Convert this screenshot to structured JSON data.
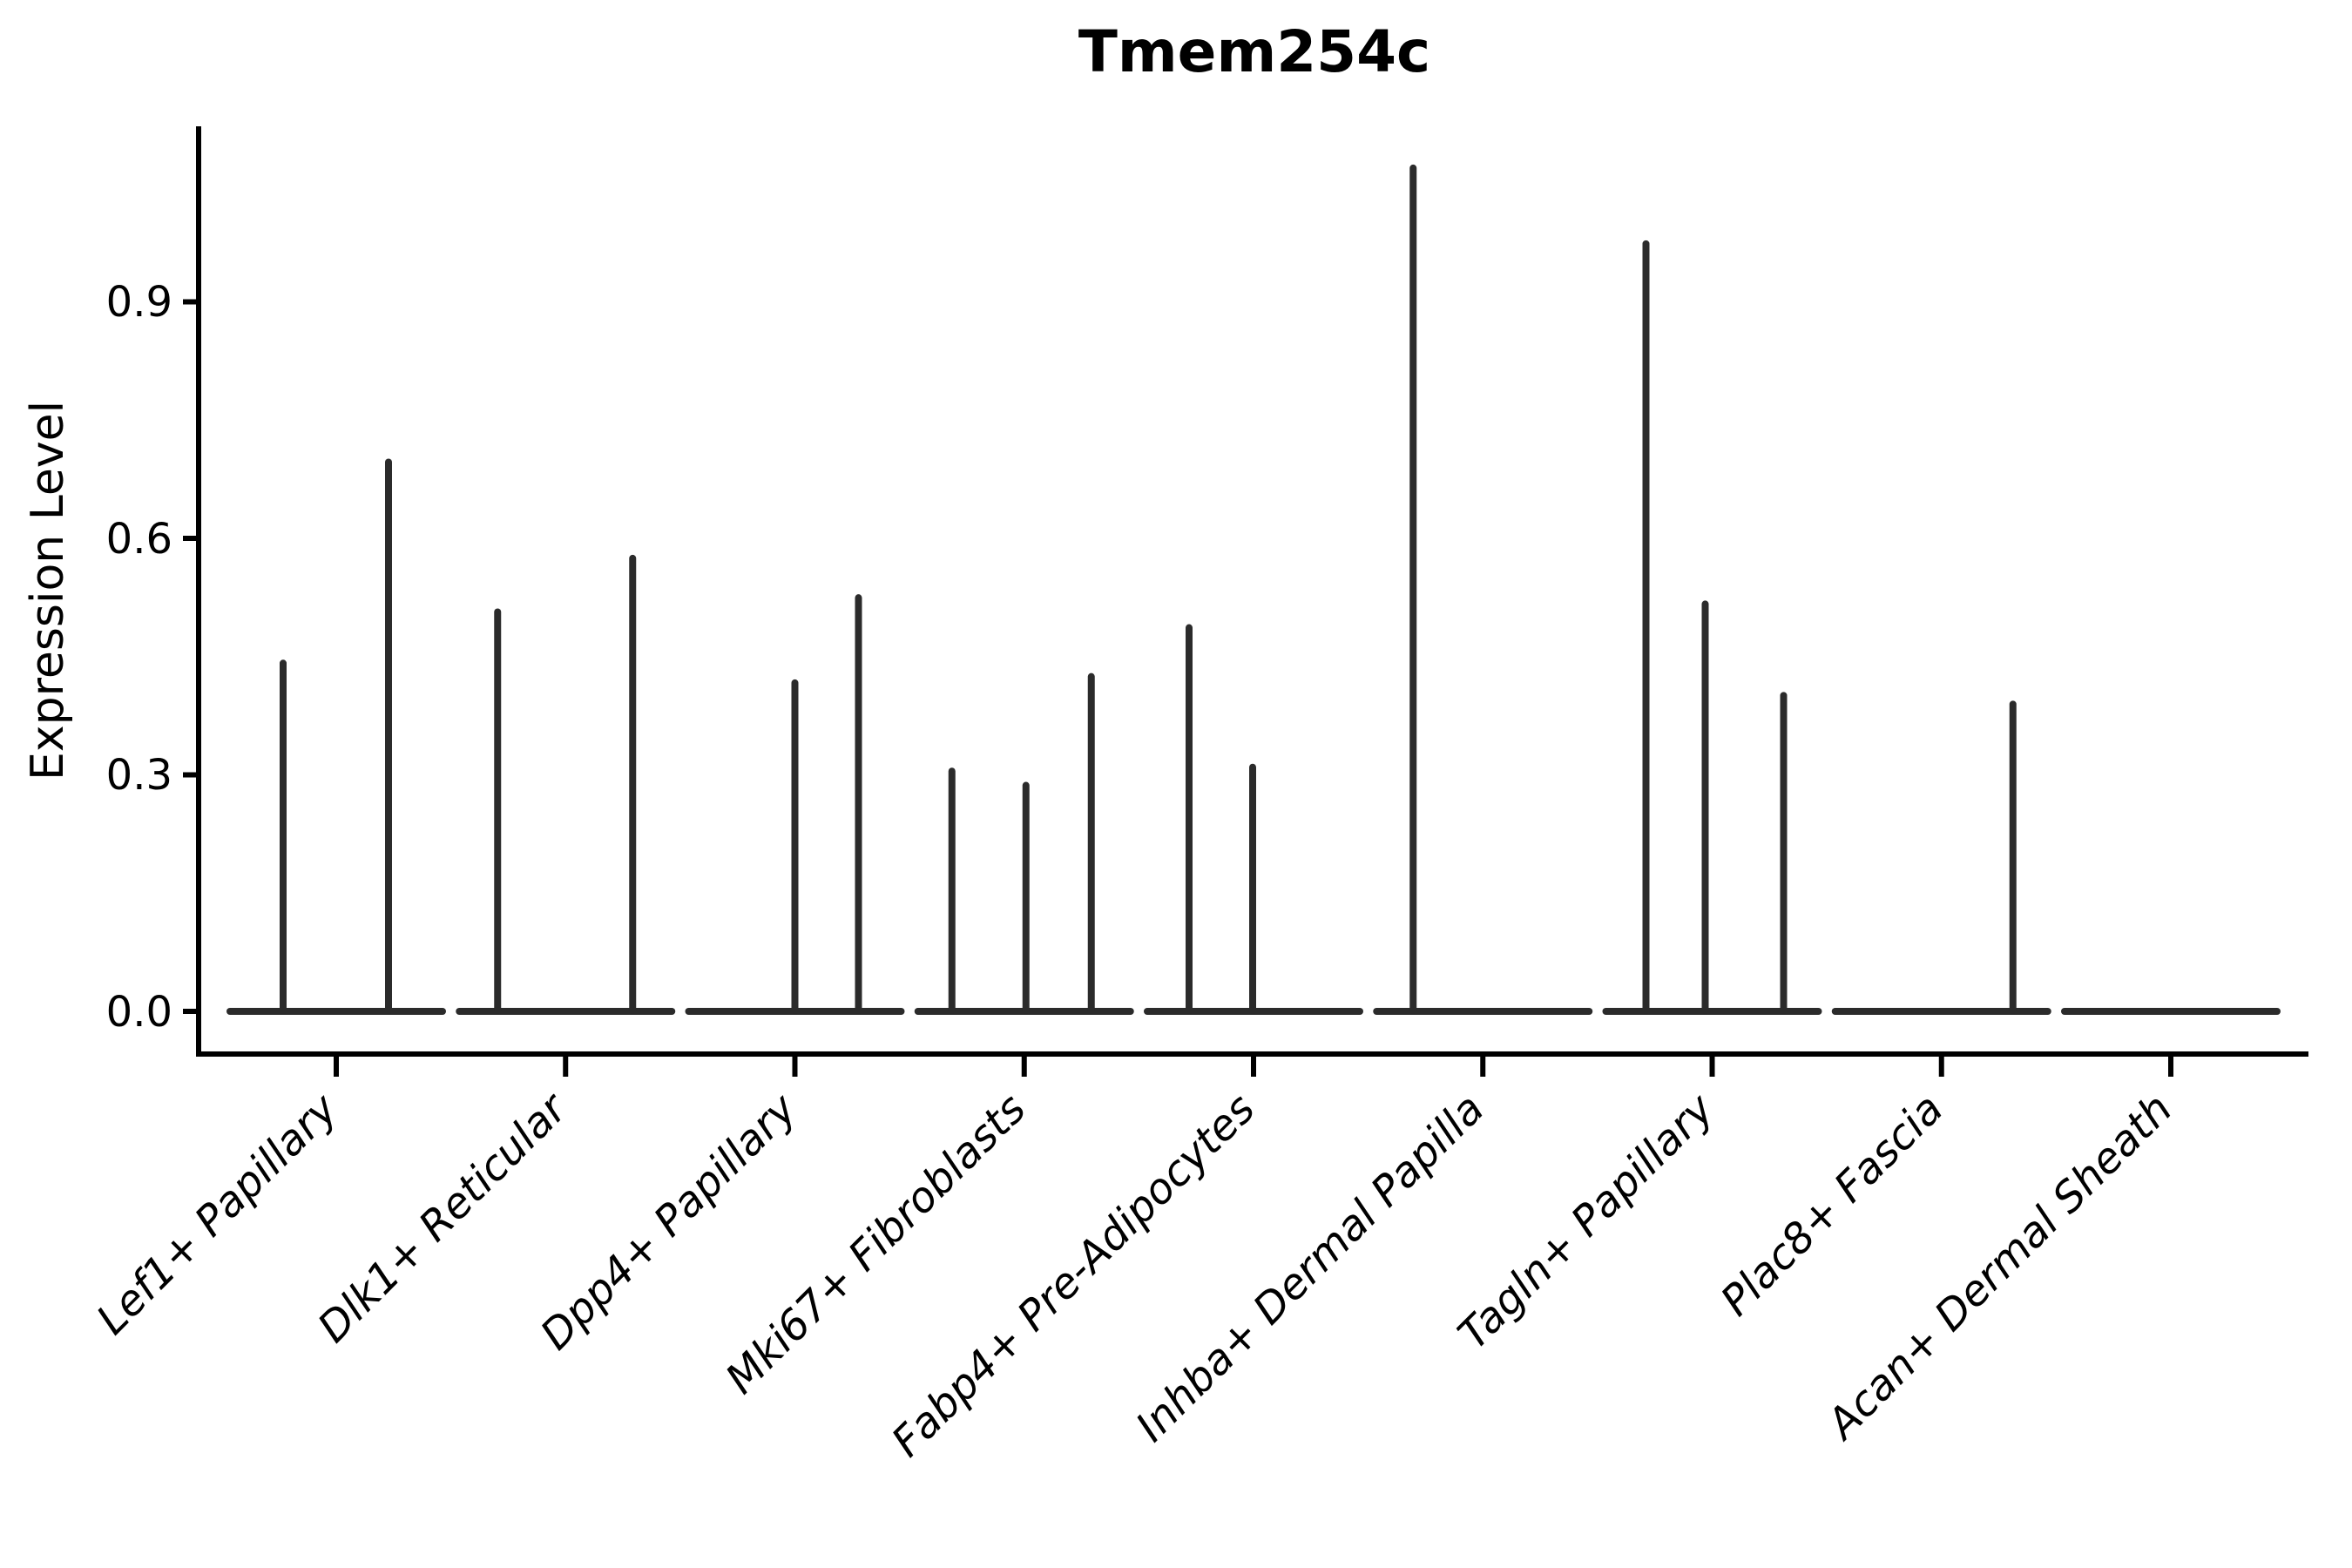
{
  "title": "Tmem254c",
  "y_axis": {
    "label": "Expression Level",
    "tick_labels": [
      "0.0",
      "0.3",
      "0.6",
      "0.9"
    ]
  },
  "chart_data": {
    "type": "violin",
    "title": "Tmem254c",
    "xlabel": "",
    "ylabel": "Expression Level",
    "ylim": [
      0,
      1.12
    ],
    "yticks": [
      0.0,
      0.3,
      0.6,
      0.9
    ],
    "grid": false,
    "legend": null,
    "note": "Single-cell expression violin plot; each category is a violin collapsed to a flat line at 0 with thin density spikes at expressing cells. Spike dx is the horizontal offset (px at 2700px figure width) of each spike from its category center; value is the expression level at the spike tip.",
    "categories": [
      {
        "label": "Lef1+ Papillary",
        "spikes": [
          {
            "dx": -61,
            "value": 0.445
          },
          {
            "dx": 60,
            "value": 0.7
          }
        ]
      },
      {
        "label": "Dlk1+ Reticular",
        "spikes": [
          {
            "dx": -78,
            "value": 0.51
          },
          {
            "dx": 77,
            "value": 0.578
          }
        ]
      },
      {
        "label": "Dpp4+ Papillary",
        "spikes": [
          {
            "dx": 0,
            "value": 0.42
          },
          {
            "dx": 73,
            "value": 0.528
          }
        ]
      },
      {
        "label": "Mki67+ Fibroblasts",
        "spikes": [
          {
            "dx": -83,
            "value": 0.308
          },
          {
            "dx": 2,
            "value": 0.29
          },
          {
            "dx": 77,
            "value": 0.428
          }
        ]
      },
      {
        "label": "Fabp4+ Pre-Adipocytes",
        "spikes": [
          {
            "dx": -74,
            "value": 0.49
          },
          {
            "dx": -1,
            "value": 0.313
          }
        ]
      },
      {
        "label": "Inhba+ Dermal Papilla",
        "spikes": [
          {
            "dx": -80,
            "value": 1.073
          }
        ]
      },
      {
        "label": "Tagln+ Papillary",
        "spikes": [
          {
            "dx": -76,
            "value": 0.977
          },
          {
            "dx": -8,
            "value": 0.52
          },
          {
            "dx": 82,
            "value": 0.404
          }
        ]
      },
      {
        "label": "Plac8+ Fascia",
        "spikes": [
          {
            "dx": 82,
            "value": 0.393
          }
        ]
      },
      {
        "label": "Acan+ Dermal Sheath",
        "spikes": []
      }
    ],
    "violin_color": "#2b2b2b",
    "axis_color": "#000000"
  }
}
